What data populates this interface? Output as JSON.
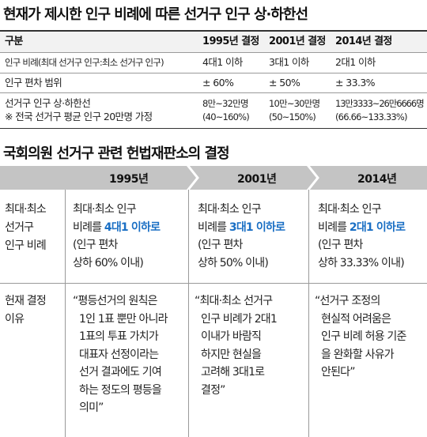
{
  "top_table": {
    "title": "현재가 제시한 인구 비례에 따른 선거구 인구 상·하한선",
    "headers": [
      "구분",
      "1995년 결정",
      "2001년 결정",
      "2014년 결정"
    ],
    "rows": [
      {
        "label": "인구 비례(최대 선거구 인구:최소 선거구 인구)",
        "values": [
          "4대1 이하",
          "3대1 이하",
          "2대1 이하"
        ]
      },
      {
        "label": "인구 편차 범위",
        "values": [
          "± 60%",
          "± 50%",
          "± 33.3%"
        ]
      },
      {
        "label": "선거구 인구 상·하한선",
        "label2": "※ 전국 선거구 평균 인구 20만명 가정",
        "values": [
          "8만~32만명",
          "10만~30만명",
          "13만3333~26만6666명"
        ],
        "values2": [
          "(40~160%)",
          "(50~150%)",
          "(66.66~133.33%)"
        ]
      }
    ]
  },
  "decisions": {
    "title": "국회의원 선거구 관련 헌법재판소의 결정",
    "years": [
      "1995년",
      "2001년",
      "2014년"
    ],
    "ratio_row": {
      "label_lines": [
        "최대·최소",
        "선거구",
        "인구 비례"
      ],
      "cols": [
        {
          "line1": "최대·최소 인구",
          "prefix": "비례를 ",
          "highlight": "4대1 이하로",
          "line3": "(인구 편차",
          "line4": "상하 60% 이내)"
        },
        {
          "line1": "최대·최소 인구",
          "prefix": "비례를 ",
          "highlight": "3대1 이하로",
          "line3": "(인구 편차",
          "line4": "상하 50% 이내)"
        },
        {
          "line1": "최대·최소 인구",
          "prefix": "비례를 ",
          "highlight": "2대1 이하로",
          "line3": "(인구 편차",
          "line4": "상하 33.33% 이내)"
        }
      ]
    },
    "reason_row": {
      "label_lines": [
        "헌재 결정",
        "이유"
      ],
      "cols": [
        {
          "lines": [
            "“평등선거의 원칙은",
            "1인 1표 뿐만 아니라",
            "1표의 투표 가치가",
            "대표자 선정이라는",
            "선거 결과에도 기여",
            "하는 정도의 평등을",
            "의미”"
          ]
        },
        {
          "lines": [
            "“최대·최소 선거구",
            "인구 비례가 2대1",
            "이내가 바람직",
            "하지만 현실을",
            "고려해 3대1로",
            "결정”"
          ]
        },
        {
          "lines": [
            "“선거구 조정의",
            "현실적 어려움은",
            "인구 비례 허용 기준",
            "을 완화할 사유가",
            "안된다”"
          ]
        }
      ]
    }
  }
}
